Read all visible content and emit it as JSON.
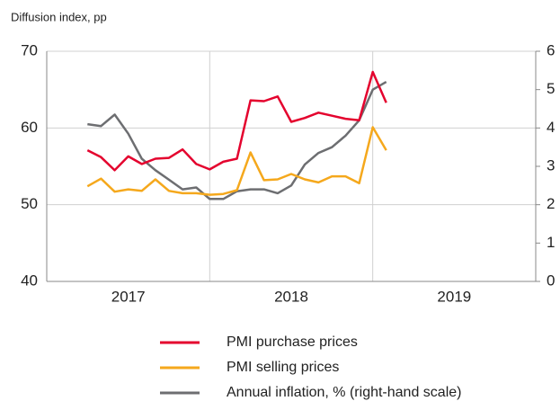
{
  "chart_data": {
    "type": "line",
    "subtitle": "Diffusion index, pp",
    "x": [
      2017.25,
      2017.333,
      2017.417,
      2017.5,
      2017.583,
      2017.667,
      2017.75,
      2017.833,
      2017.917,
      2018.0,
      2018.083,
      2018.167,
      2018.25,
      2018.333,
      2018.417,
      2018.5,
      2018.583,
      2018.667,
      2018.75,
      2018.833,
      2018.917,
      2019.0,
      2019.083
    ],
    "series": [
      {
        "name": "PMI purchase prices",
        "color": "#e4032e",
        "values": [
          57.1,
          56.2,
          54.5,
          56.3,
          55.3,
          56.0,
          56.1,
          57.2,
          55.3,
          54.6,
          55.6,
          56.0,
          63.6,
          63.5,
          64.1,
          60.8,
          61.3,
          62.0,
          61.6,
          61.2,
          61.0,
          67.3,
          63.3
        ]
      },
      {
        "name": "PMI selling prices",
        "color": "#f5a81c",
        "values": [
          52.4,
          53.4,
          51.7,
          52.0,
          51.8,
          53.3,
          51.8,
          51.5,
          51.5,
          51.3,
          51.4,
          51.9,
          56.8,
          53.2,
          53.3,
          54.0,
          53.3,
          52.9,
          53.7,
          53.7,
          52.8,
          60.1,
          57.1
        ]
      },
      {
        "name": "Annual inflation, % (right-hand scale)",
        "color": "#6d6e71",
        "axis": "y2",
        "values": [
          4.1,
          4.05,
          4.35,
          3.85,
          3.2,
          2.9,
          2.65,
          2.4,
          2.45,
          2.15,
          2.15,
          2.35,
          2.4,
          2.4,
          2.3,
          2.5,
          3.05,
          3.35,
          3.5,
          3.8,
          4.2,
          5.0,
          5.2
        ]
      }
    ],
    "xlim": [
      2017,
      2020
    ],
    "xticks": [
      {
        "value": 2017.5,
        "label": "2017"
      },
      {
        "value": 2018.5,
        "label": "2018"
      },
      {
        "value": 2019.5,
        "label": "2019"
      }
    ],
    "xgrid": [
      2018,
      2019
    ],
    "ylim": [
      40,
      70
    ],
    "yticks": [
      40,
      50,
      60,
      70
    ],
    "y2lim": [
      0,
      6
    ],
    "y2ticks": [
      0,
      1,
      2,
      3,
      4,
      5,
      6
    ],
    "grid": true,
    "legend": "bottom"
  }
}
